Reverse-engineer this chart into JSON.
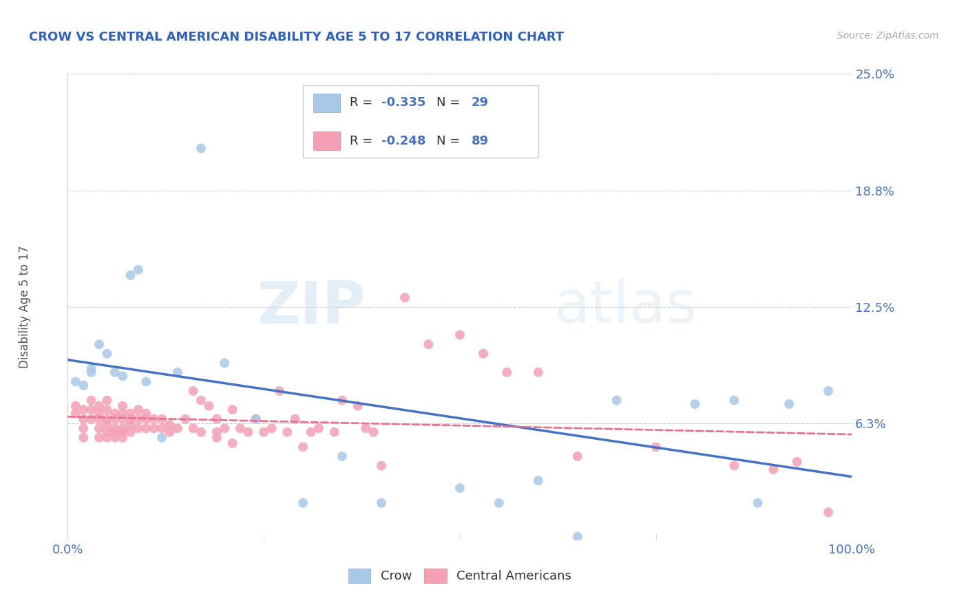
{
  "title": "CROW VS CENTRAL AMERICAN DISABILITY AGE 5 TO 17 CORRELATION CHART",
  "source": "Source: ZipAtlas.com",
  "ylabel": "Disability Age 5 to 17",
  "x_min": 0.0,
  "x_max": 1.0,
  "y_min": 0.0,
  "y_max": 0.25,
  "yticks": [
    0.0,
    0.0625,
    0.125,
    0.1875,
    0.25
  ],
  "ytick_labels": [
    "",
    "6.3%",
    "12.5%",
    "18.8%",
    "25.0%"
  ],
  "xtick_labels": [
    "0.0%",
    "100.0%"
  ],
  "crow_R": -0.335,
  "crow_N": 29,
  "ca_R": -0.248,
  "ca_N": 89,
  "crow_color": "#a8c8e8",
  "ca_color": "#f4a0b4",
  "crow_line_color": "#4472c4",
  "ca_line_color": "#e87090",
  "title_color": "#3060c0",
  "label_color": "#4472c4",
  "grid_color": "#cccccc",
  "background_color": "#ffffff",
  "watermark_zip": "ZIP",
  "watermark_atlas": "atlas",
  "crow_scatter_x": [
    0.01,
    0.02,
    0.03,
    0.03,
    0.04,
    0.05,
    0.06,
    0.07,
    0.08,
    0.09,
    0.1,
    0.12,
    0.14,
    0.17,
    0.2,
    0.24,
    0.3,
    0.35,
    0.4,
    0.5,
    0.55,
    0.6,
    0.65,
    0.7,
    0.8,
    0.85,
    0.88,
    0.92,
    0.97
  ],
  "crow_scatter_y": [
    0.085,
    0.083,
    0.09,
    0.092,
    0.105,
    0.1,
    0.09,
    0.088,
    0.142,
    0.145,
    0.085,
    0.055,
    0.09,
    0.21,
    0.095,
    0.065,
    0.02,
    0.045,
    0.02,
    0.028,
    0.02,
    0.032,
    0.002,
    0.075,
    0.073,
    0.075,
    0.02,
    0.073,
    0.08
  ],
  "ca_scatter_x": [
    0.01,
    0.01,
    0.02,
    0.02,
    0.02,
    0.02,
    0.03,
    0.03,
    0.03,
    0.04,
    0.04,
    0.04,
    0.04,
    0.04,
    0.05,
    0.05,
    0.05,
    0.05,
    0.05,
    0.05,
    0.06,
    0.06,
    0.06,
    0.06,
    0.06,
    0.07,
    0.07,
    0.07,
    0.07,
    0.07,
    0.07,
    0.08,
    0.08,
    0.08,
    0.08,
    0.09,
    0.09,
    0.09,
    0.1,
    0.1,
    0.1,
    0.11,
    0.11,
    0.12,
    0.12,
    0.13,
    0.13,
    0.14,
    0.15,
    0.16,
    0.16,
    0.17,
    0.17,
    0.18,
    0.19,
    0.19,
    0.19,
    0.2,
    0.21,
    0.21,
    0.22,
    0.23,
    0.24,
    0.25,
    0.26,
    0.27,
    0.28,
    0.29,
    0.3,
    0.31,
    0.32,
    0.34,
    0.35,
    0.37,
    0.38,
    0.39,
    0.4,
    0.43,
    0.46,
    0.5,
    0.53,
    0.56,
    0.6,
    0.65,
    0.75,
    0.85,
    0.9,
    0.93,
    0.97
  ],
  "ca_scatter_y": [
    0.072,
    0.068,
    0.07,
    0.065,
    0.06,
    0.055,
    0.075,
    0.07,
    0.065,
    0.072,
    0.068,
    0.065,
    0.06,
    0.055,
    0.075,
    0.07,
    0.065,
    0.062,
    0.058,
    0.055,
    0.068,
    0.065,
    0.06,
    0.058,
    0.055,
    0.072,
    0.068,
    0.065,
    0.06,
    0.058,
    0.055,
    0.068,
    0.065,
    0.062,
    0.058,
    0.07,
    0.065,
    0.06,
    0.068,
    0.065,
    0.06,
    0.065,
    0.06,
    0.065,
    0.06,
    0.062,
    0.058,
    0.06,
    0.065,
    0.08,
    0.06,
    0.075,
    0.058,
    0.072,
    0.065,
    0.058,
    0.055,
    0.06,
    0.07,
    0.052,
    0.06,
    0.058,
    0.065,
    0.058,
    0.06,
    0.08,
    0.058,
    0.065,
    0.05,
    0.058,
    0.06,
    0.058,
    0.075,
    0.072,
    0.06,
    0.058,
    0.04,
    0.13,
    0.105,
    0.11,
    0.1,
    0.09,
    0.09,
    0.045,
    0.05,
    0.04,
    0.038,
    0.042,
    0.015
  ]
}
